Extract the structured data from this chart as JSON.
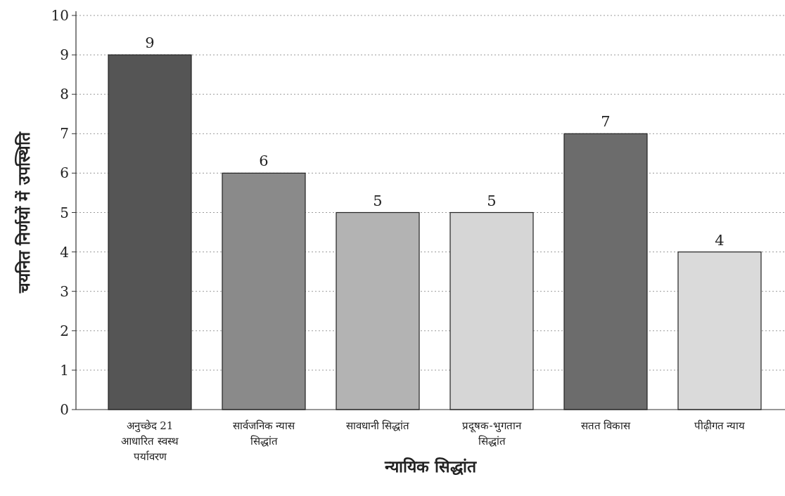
{
  "chart_data": {
    "type": "bar",
    "xlabel": "न्यायिक सिद्धांत",
    "ylabel": "चयनित निर्णयों में उपस्थिति",
    "categories": [
      "अनुच्छेद 21 आधारित स्वस्थ पर्यावरण",
      "सार्वजनिक न्यास सिद्धांत",
      "सावधानी सिद्धांत",
      "प्रदूषक-भुगतान सिद्धांत",
      "सतत विकास",
      "पीढ़ीगत न्याय"
    ],
    "values": [
      9,
      6,
      5,
      5,
      7,
      4
    ],
    "colors": [
      "#555555",
      "#8a8a8a",
      "#b3b3b3",
      "#d6d6d6",
      "#6c6c6c",
      "#dadada"
    ],
    "ylim": [
      0,
      10
    ],
    "yticks": [
      0,
      1,
      2,
      3,
      4,
      5,
      6,
      7,
      8,
      9,
      10
    ],
    "grid": "y",
    "data_labels": true
  }
}
